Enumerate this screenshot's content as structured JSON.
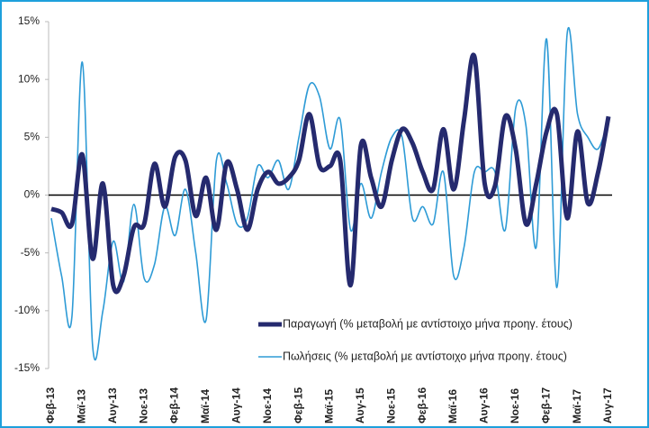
{
  "chart_data": {
    "type": "line",
    "categories": [
      "Φεβ-13",
      null,
      null,
      "Μαϊ-13",
      null,
      null,
      "Αυγ-13",
      null,
      null,
      "Νοε-13",
      null,
      null,
      "Φεβ-14",
      null,
      null,
      "Μαϊ-14",
      null,
      null,
      "Αυγ-14",
      null,
      null,
      "Νοε-14",
      null,
      null,
      "Φεβ-15",
      null,
      null,
      "Μαϊ-15",
      null,
      null,
      "Αυγ-15",
      null,
      null,
      "Νοε-15",
      null,
      null,
      "Φεβ-16",
      null,
      null,
      "Μαϊ-16",
      null,
      null,
      "Αυγ-16",
      null,
      null,
      "Νοε-16",
      null,
      null,
      "Φεβ-17",
      null,
      null,
      "Μαϊ-17",
      null,
      null,
      "Αυγ-17"
    ],
    "series": [
      {
        "name": "Παραγωγή (% μεταβολή με αντίστοιχο μήνα προηγ. έτους)",
        "color": "#252a6e",
        "width": 5,
        "values": [
          -1.2,
          -1.5,
          -2.5,
          3.5,
          -5.5,
          1,
          -7.8,
          -7,
          -2.8,
          -2.5,
          2.7,
          -1,
          3.3,
          3,
          -1.8,
          1.5,
          -3,
          2.8,
          0.5,
          -3,
          0.5,
          2,
          1,
          1.5,
          3,
          7,
          2.5,
          2.5,
          3,
          -7.8,
          4.3,
          1.5,
          -1,
          3,
          5.7,
          4.5,
          2,
          0.5,
          5.7,
          0.5,
          6.5,
          12,
          1,
          0.8,
          6.8,
          4,
          -2.5,
          1,
          5.5,
          7,
          -2,
          5.5,
          -0.7,
          2,
          6.8
        ]
      },
      {
        "name": "Πωλήσεις (% μεταβολή με αντίστοιχο μήνα προηγ. έτους)",
        "color": "#2e9bd6",
        "width": 1.6,
        "values": [
          -2,
          -7,
          -10.5,
          11.5,
          -13,
          -10,
          -4,
          -7.5,
          -0.8,
          -7.2,
          -6,
          -1,
          -3.5,
          0.5,
          -5,
          -10.8,
          3,
          1,
          -2.5,
          -2,
          2.5,
          1.5,
          3,
          0.5,
          5,
          9.5,
          8.5,
          4,
          6.5,
          -3,
          1,
          -2,
          2,
          5,
          5,
          -2,
          -1,
          -2.5,
          2,
          -7,
          -4.5,
          2,
          2,
          2,
          -3,
          7.5,
          6,
          -4.5,
          13.5,
          -8,
          14,
          7,
          5,
          4,
          6.5
        ]
      }
    ],
    "ylim": [
      -15,
      15
    ],
    "yticks": [
      {
        "value": -15,
        "label": "-15%"
      },
      {
        "value": -10,
        "label": "-10%"
      },
      {
        "value": -5,
        "label": "-5%"
      },
      {
        "value": 0,
        "label": "0%"
      },
      {
        "value": 5,
        "label": "5%"
      },
      {
        "value": 10,
        "label": "10%"
      },
      {
        "value": 15,
        "label": "15%"
      }
    ],
    "zero_line": true
  }
}
